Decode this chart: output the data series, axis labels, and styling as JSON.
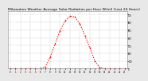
{
  "hours": [
    0,
    1,
    2,
    3,
    4,
    5,
    6,
    7,
    8,
    9,
    10,
    11,
    12,
    13,
    14,
    15,
    16,
    17,
    18,
    19,
    20,
    21,
    22,
    23
  ],
  "values": [
    0,
    0,
    0,
    0,
    0,
    0,
    0,
    20,
    150,
    320,
    490,
    620,
    680,
    670,
    580,
    430,
    270,
    100,
    15,
    0,
    0,
    0,
    0,
    0
  ],
  "line_color": "#ff0000",
  "bg_color": "#e8e8e8",
  "plot_bg": "#ffffff",
  "grid_color": "#aaaaaa",
  "tick_color": "#000000",
  "title": "Milwaukee Weather Average Solar Radiation per Hour W/m2 (Last 24 Hours)",
  "title_color": "#000000",
  "title_fontsize": 3.2,
  "ylim": [
    0,
    750
  ],
  "yticks": [
    0,
    100,
    200,
    300,
    400,
    500,
    600,
    700
  ],
  "line_width": 0.7,
  "marker_size": 1.2,
  "xlim": [
    -0.5,
    23.5
  ]
}
